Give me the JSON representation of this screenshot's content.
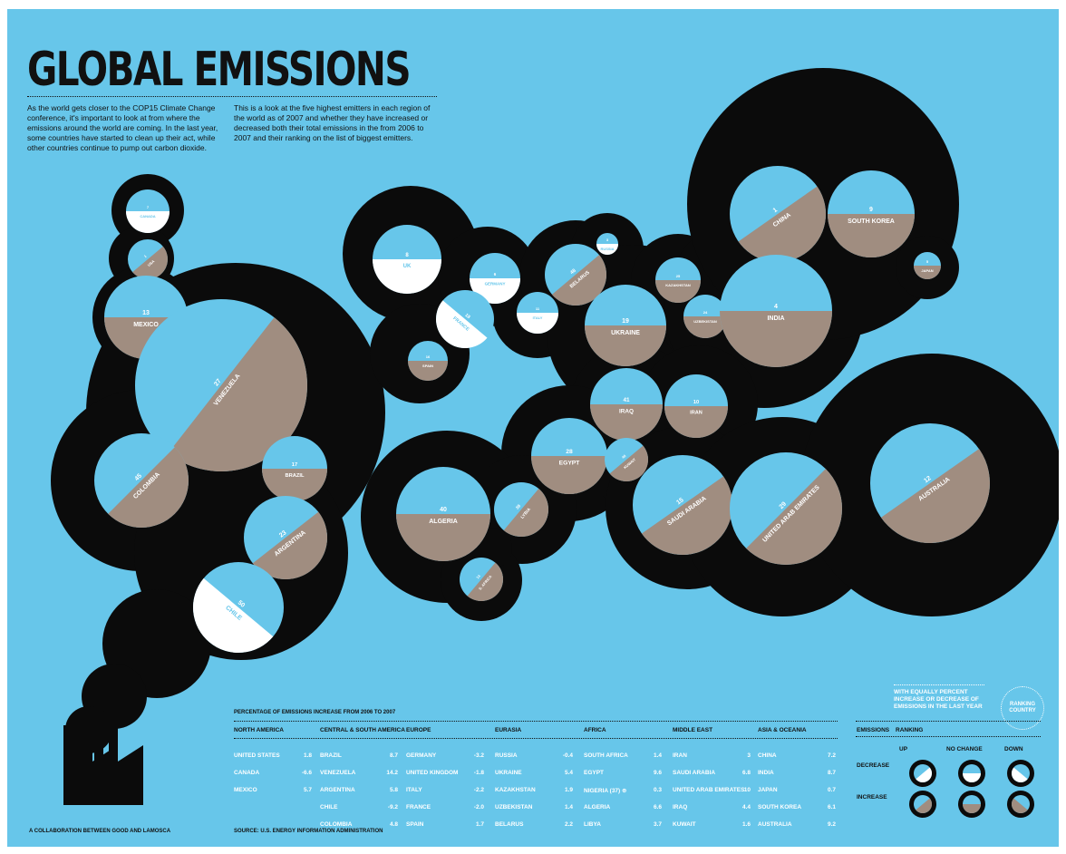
{
  "title": "GLOBAL EMISSIONS",
  "intro": {
    "left": "As the world gets closer to the COP15 Climate Change conference, it's important to look at from where the emissions around the world are coming. In the last year, some countries have started to clean up their act, while other countries continue to pump out carbon dioxide.",
    "right": "This is a look at the five highest emitters in each region of the world as of 2007 and whether they have increased or decreased both their total emissions in the from 2006 to 2007 and their ranking on the list of biggest emitters."
  },
  "colors": {
    "background": "#67c6ea",
    "smoke": "#0b0b0b",
    "increase": "#a08d80",
    "decrease": "#ffffff",
    "empty": "#67c6ea"
  },
  "chart_data": {
    "type": "bubble",
    "title": "GLOBAL EMISSIONS",
    "countries": [
      {
        "name": "CANADA",
        "rank": "7",
        "fill": "decrease",
        "style": "horizontal"
      },
      {
        "name": "USA",
        "rank": "1",
        "fill": "increase",
        "style": "diagonal"
      },
      {
        "name": "MEXICO",
        "rank": "13",
        "fill": "increase",
        "style": "horizontal"
      },
      {
        "name": "VENEZUELA",
        "rank": "27",
        "fill": "increase",
        "style": "diagonal"
      },
      {
        "name": "COLOMBIA",
        "rank": "45",
        "fill": "increase",
        "style": "diagonal"
      },
      {
        "name": "BRAZIL",
        "rank": "17",
        "fill": "increase",
        "style": "horizontal"
      },
      {
        "name": "ARGENTINA",
        "rank": "23",
        "fill": "increase",
        "style": "diagonal"
      },
      {
        "name": "CHILE",
        "rank": "50",
        "fill": "decrease",
        "style": "diagonal"
      },
      {
        "name": "UK",
        "rank": "8",
        "fill": "decrease",
        "style": "horizontal"
      },
      {
        "name": "GERMANY",
        "rank": "6",
        "fill": "decrease",
        "style": "horizontal"
      },
      {
        "name": "FRANCE",
        "rank": "18",
        "fill": "decrease",
        "style": "diagonal"
      },
      {
        "name": "ITALY",
        "rank": "11",
        "fill": "decrease",
        "style": "horizontal"
      },
      {
        "name": "SPAIN",
        "rank": "16",
        "fill": "increase",
        "style": "horizontal"
      },
      {
        "name": "BELARUS",
        "rank": "48",
        "fill": "increase",
        "style": "diagonal"
      },
      {
        "name": "RUSSIA",
        "rank": "3",
        "fill": "decrease",
        "style": "horizontal"
      },
      {
        "name": "UKRAINE",
        "rank": "19",
        "fill": "increase",
        "style": "horizontal"
      },
      {
        "name": "KAZAKHSTAN",
        "rank": "25",
        "fill": "increase",
        "style": "horizontal"
      },
      {
        "name": "UZBEKISTAN",
        "rank": "24",
        "fill": "increase",
        "style": "horizontal"
      },
      {
        "name": "CHINA",
        "rank": "1",
        "fill": "increase",
        "style": "diagonal"
      },
      {
        "name": "SOUTH KOREA",
        "rank": "9",
        "fill": "increase",
        "style": "horizontal"
      },
      {
        "name": "JAPAN",
        "rank": "5",
        "fill": "increase",
        "style": "horizontal"
      },
      {
        "name": "INDIA",
        "rank": "4",
        "fill": "increase",
        "style": "horizontal"
      },
      {
        "name": "IRAQ",
        "rank": "41",
        "fill": "increase",
        "style": "horizontal"
      },
      {
        "name": "IRAN",
        "rank": "10",
        "fill": "increase",
        "style": "horizontal"
      },
      {
        "name": "EGYPT",
        "rank": "28",
        "fill": "increase",
        "style": "horizontal"
      },
      {
        "name": "KUWAIT",
        "rank": "40",
        "fill": "increase",
        "style": "diagonal"
      },
      {
        "name": "LYBIA",
        "rank": "38",
        "fill": "increase",
        "style": "diagonal"
      },
      {
        "name": "ALGERIA",
        "rank": "40",
        "fill": "increase",
        "style": "horizontal"
      },
      {
        "name": "S. AFRICA",
        "rank": "14",
        "fill": "increase",
        "style": "diagonal"
      },
      {
        "name": "SAUDI ARABIA",
        "rank": "15",
        "fill": "increase",
        "style": "diagonal"
      },
      {
        "name": "UNITED ARAB EMIRATES",
        "rank": "29",
        "fill": "increase",
        "style": "diagonal"
      },
      {
        "name": "AUSTRALIA",
        "rank": "12",
        "fill": "increase",
        "style": "diagonal"
      }
    ],
    "legend": {
      "note": "WITH EQUALLY PERCENT INCREASE OR DECREASE OF EMISSIONS IN THE LAST YEAR",
      "ranking_label": "RANKING COUNTRY"
    }
  },
  "table": {
    "caption": "PERCENTAGE OF EMISSIONS INCREASE FROM 2006 TO 2007",
    "regions": [
      {
        "name": "NORTH AMERICA",
        "rows": [
          {
            "country": "UNITED STATES",
            "value": "1.8"
          },
          {
            "country": "CANADA",
            "value": "-6.6"
          },
          {
            "country": "MEXICO",
            "value": "5.7"
          }
        ]
      },
      {
        "name": "CENTRAL & SOUTH AMERICA",
        "rows": [
          {
            "country": "BRAZIL",
            "value": "8.7"
          },
          {
            "country": "VENEZUELA",
            "value": "14.2"
          },
          {
            "country": "ARGENTINA",
            "value": "5.8"
          },
          {
            "country": "CHILE",
            "value": "-9.2"
          },
          {
            "country": "COLOMBIA",
            "value": "4.8"
          }
        ]
      },
      {
        "name": "EUROPE",
        "rows": [
          {
            "country": "GERMANY",
            "value": "-3.2"
          },
          {
            "country": "UNITED KINGDOM",
            "value": "-1.8"
          },
          {
            "country": "ITALY",
            "value": "-2.2"
          },
          {
            "country": "FRANCE",
            "value": "-2.0"
          },
          {
            "country": "SPAIN",
            "value": "1.7"
          }
        ]
      },
      {
        "name": "EURASIA",
        "rows": [
          {
            "country": "RUSSIA",
            "value": "-0.4"
          },
          {
            "country": "UKRAINE",
            "value": "5.4"
          },
          {
            "country": "KAZAKHSTAN",
            "value": "1.9"
          },
          {
            "country": "UZBEKISTAN",
            "value": "1.4"
          },
          {
            "country": "BELARUS",
            "value": "2.2"
          }
        ]
      },
      {
        "name": "AFRICA",
        "rows": [
          {
            "country": "SOUTH AFRICA",
            "value": "1.4"
          },
          {
            "country": "EGYPT",
            "value": "9.6"
          },
          {
            "country": "NIGERIA (37) ⊕",
            "value": "0.3"
          },
          {
            "country": "ALGERIA",
            "value": "6.6"
          },
          {
            "country": "LIBYA",
            "value": "3.7"
          }
        ]
      },
      {
        "name": "MIDDLE EAST",
        "rows": [
          {
            "country": "IRAN",
            "value": "3"
          },
          {
            "country": "SAUDI ARABIA",
            "value": "6.8"
          },
          {
            "country": "UNITED ARAB EMIRATES",
            "value": "10"
          },
          {
            "country": "IRAQ",
            "value": "4.4"
          },
          {
            "country": "KUWAIT",
            "value": "1.6"
          }
        ]
      },
      {
        "name": "ASIA & OCEANIA",
        "rows": [
          {
            "country": "CHINA",
            "value": "7.2"
          },
          {
            "country": "INDIA",
            "value": "8.7"
          },
          {
            "country": "JAPAN",
            "value": "0.7"
          },
          {
            "country": "SOUTH KOREA",
            "value": "6.1"
          },
          {
            "country": "AUSTRALIA",
            "value": "9.2"
          }
        ]
      }
    ],
    "source": "SOURCE: U.S. ENERGY INFORMATION ADMINISTRATION"
  },
  "key": {
    "emissions_label": "EMISSIONS",
    "ranking_label": "RANKING",
    "columns": [
      "UP",
      "NO CHANGE",
      "DOWN"
    ],
    "rows": [
      "DECREASE",
      "INCREASE"
    ]
  },
  "credit": "A COLLABORATION BETWEEN GOOD AND LAMOSCA"
}
